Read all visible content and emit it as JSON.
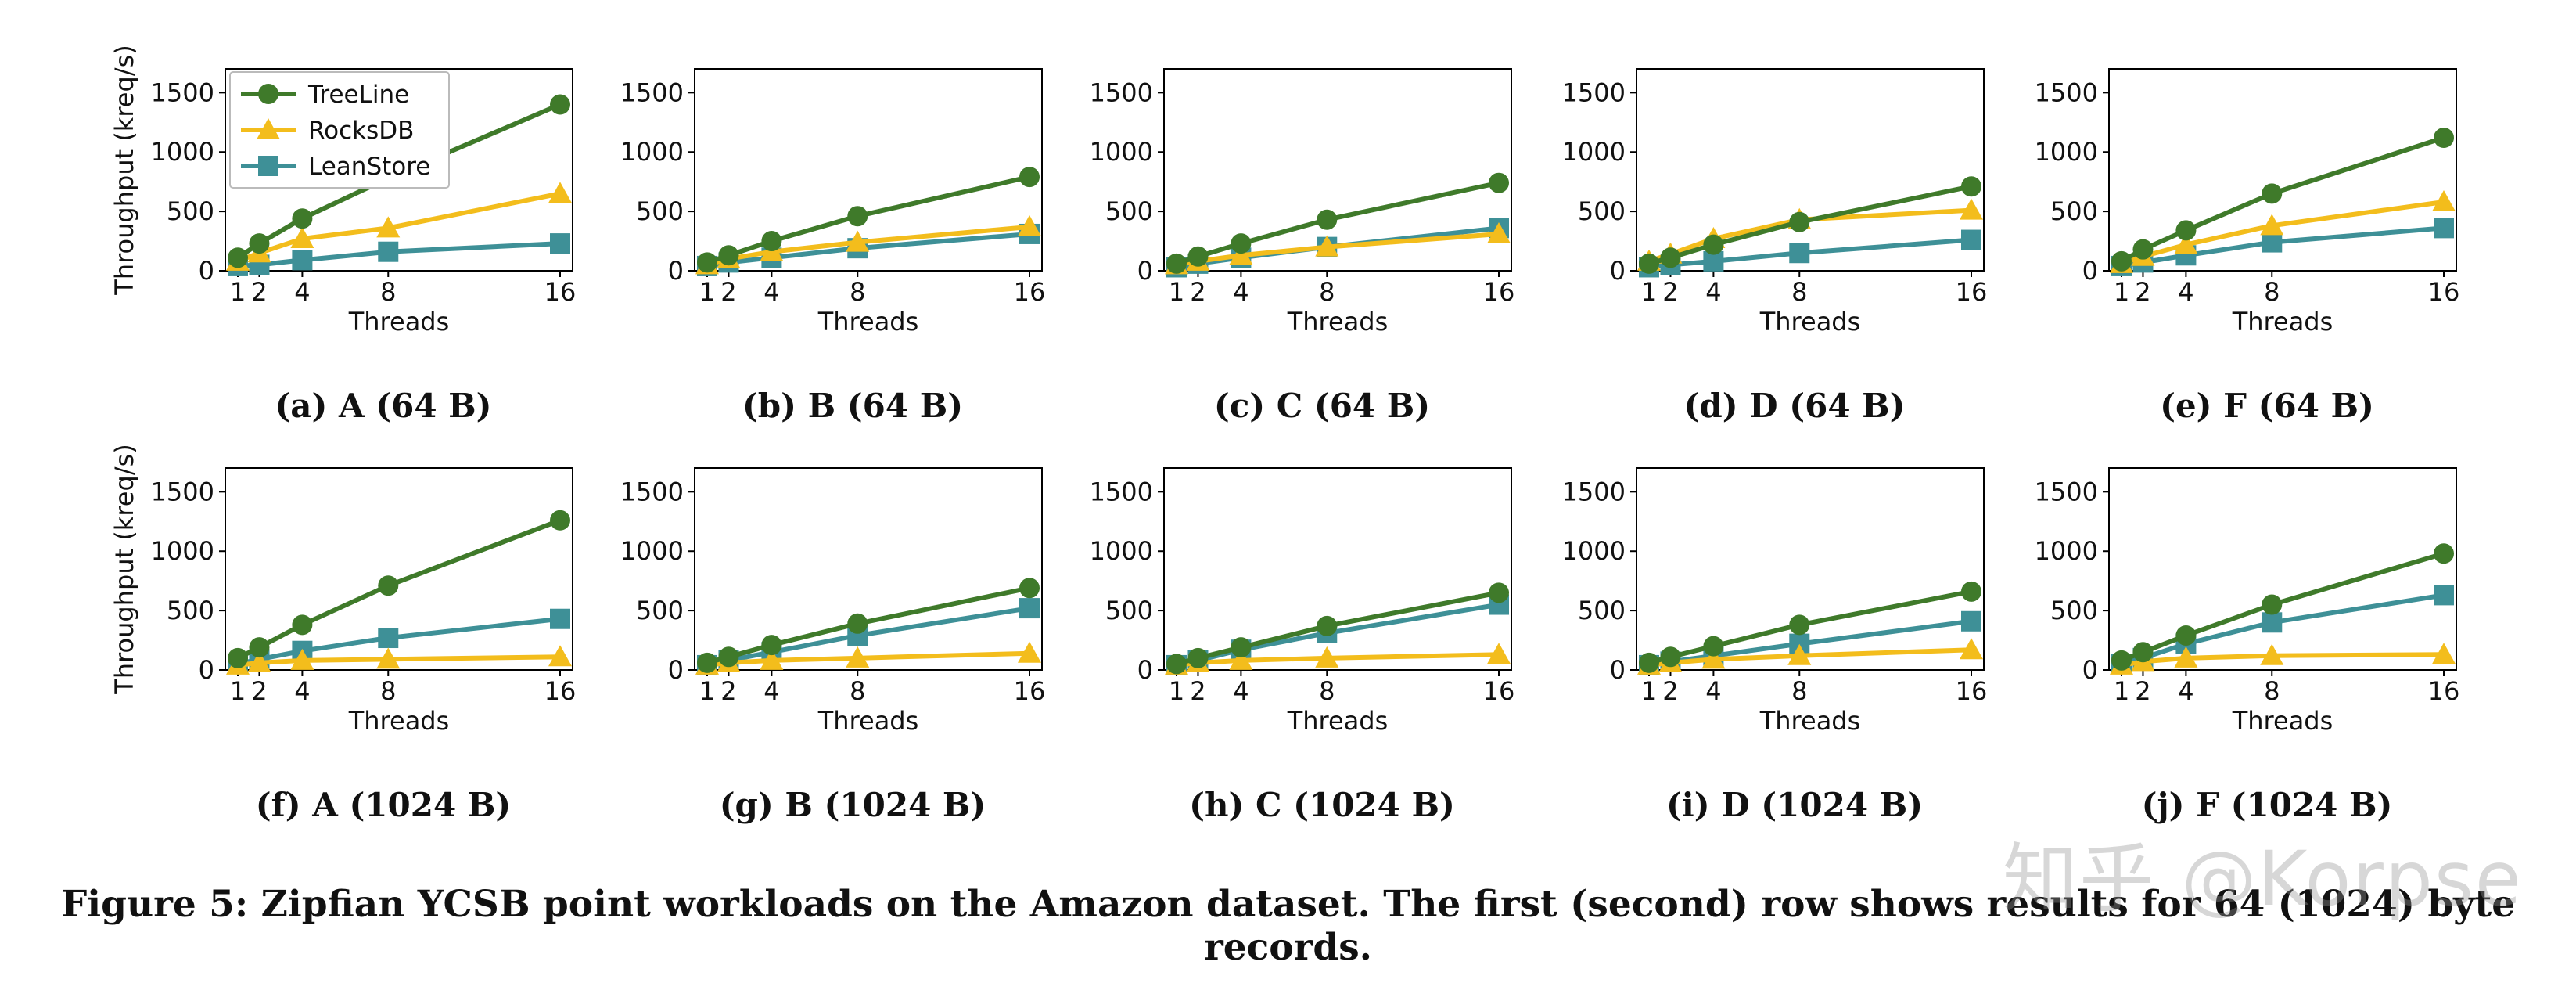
{
  "figure_caption": "Figure 5: Zipfian YCSB point workloads on the Amazon dataset. The first (second) row shows results for 64 (1024) byte records.",
  "watermark": "知乎 @Korpse",
  "colors": {
    "TreeLine": "#3f7a2a",
    "RocksDB": "#f3bd1c",
    "LeanStore": "#3e9097"
  },
  "chart_data": [
    {
      "type": "line",
      "caption": "(a) A (64 B)",
      "xlabel": "Threads",
      "ylabel": "Throughput (kreq/s)",
      "x": [
        1,
        2,
        4,
        8,
        16
      ],
      "xticks": [
        "1",
        "2",
        "4",
        "8",
        "16"
      ],
      "yticks": [
        "0",
        "500",
        "1000",
        "1500"
      ],
      "ylim": [
        0,
        1700
      ],
      "legend": true,
      "legend_position": "top-left",
      "series": [
        {
          "name": "TreeLine",
          "marker": "circle",
          "values": [
            110,
            230,
            440,
            780,
            1400
          ]
        },
        {
          "name": "RocksDB",
          "marker": "triangle",
          "values": [
            80,
            150,
            270,
            360,
            650
          ]
        },
        {
          "name": "LeanStore",
          "marker": "square",
          "values": [
            40,
            50,
            90,
            160,
            230
          ]
        }
      ]
    },
    {
      "type": "line",
      "caption": "(b) B (64 B)",
      "xlabel": "Threads",
      "ylabel": "",
      "x": [
        1,
        2,
        4,
        8,
        16
      ],
      "xticks": [
        "1",
        "2",
        "4",
        "8",
        "16"
      ],
      "yticks": [
        "0",
        "500",
        "1000",
        "1500"
      ],
      "ylim": [
        0,
        1700
      ],
      "legend": false,
      "series": [
        {
          "name": "TreeLine",
          "marker": "circle",
          "values": [
            70,
            130,
            250,
            460,
            790
          ]
        },
        {
          "name": "RocksDB",
          "marker": "triangle",
          "values": [
            50,
            100,
            160,
            240,
            370
          ]
        },
        {
          "name": "LeanStore",
          "marker": "square",
          "values": [
            40,
            70,
            110,
            190,
            310
          ]
        }
      ]
    },
    {
      "type": "line",
      "caption": "(c) C (64 B)",
      "xlabel": "Threads",
      "ylabel": "",
      "x": [
        1,
        2,
        4,
        8,
        16
      ],
      "xticks": [
        "1",
        "2",
        "4",
        "8",
        "16"
      ],
      "yticks": [
        "0",
        "500",
        "1000",
        "1500"
      ],
      "ylim": [
        0,
        1700
      ],
      "legend": false,
      "series": [
        {
          "name": "TreeLine",
          "marker": "circle",
          "values": [
            60,
            120,
            230,
            430,
            740
          ]
        },
        {
          "name": "RocksDB",
          "marker": "triangle",
          "values": [
            50,
            80,
            130,
            200,
            310
          ]
        },
        {
          "name": "LeanStore",
          "marker": "square",
          "values": [
            30,
            60,
            110,
            200,
            360
          ]
        }
      ]
    },
    {
      "type": "line",
      "caption": "(d) D (64 B)",
      "xlabel": "Threads",
      "ylabel": "",
      "x": [
        1,
        2,
        4,
        8,
        16
      ],
      "xticks": [
        "1",
        "2",
        "4",
        "8",
        "16"
      ],
      "yticks": [
        "0",
        "500",
        "1000",
        "1500"
      ],
      "ylim": [
        0,
        1700
      ],
      "legend": false,
      "series": [
        {
          "name": "TreeLine",
          "marker": "circle",
          "values": [
            60,
            110,
            220,
            410,
            710
          ]
        },
        {
          "name": "RocksDB",
          "marker": "triangle",
          "values": [
            80,
            140,
            270,
            430,
            510
          ]
        },
        {
          "name": "LeanStore",
          "marker": "square",
          "values": [
            30,
            50,
            80,
            150,
            260
          ]
        }
      ]
    },
    {
      "type": "line",
      "caption": "(e) F (64 B)",
      "xlabel": "Threads",
      "ylabel": "",
      "x": [
        1,
        2,
        4,
        8,
        16
      ],
      "xticks": [
        "1",
        "2",
        "4",
        "8",
        "16"
      ],
      "yticks": [
        "0",
        "500",
        "1000",
        "1500"
      ],
      "ylim": [
        0,
        1700
      ],
      "legend": false,
      "series": [
        {
          "name": "TreeLine",
          "marker": "circle",
          "values": [
            80,
            180,
            340,
            650,
            1120
          ]
        },
        {
          "name": "RocksDB",
          "marker": "triangle",
          "values": [
            60,
            120,
            220,
            380,
            580
          ]
        },
        {
          "name": "LeanStore",
          "marker": "square",
          "values": [
            40,
            70,
            130,
            240,
            360
          ]
        }
      ]
    },
    {
      "type": "line",
      "caption": "(f) A (1024 B)",
      "xlabel": "Threads",
      "ylabel": "Throughput (kreq/s)",
      "x": [
        1,
        2,
        4,
        8,
        16
      ],
      "xticks": [
        "1",
        "2",
        "4",
        "8",
        "16"
      ],
      "yticks": [
        "0",
        "500",
        "1000",
        "1500"
      ],
      "ylim": [
        0,
        1700
      ],
      "legend": false,
      "series": [
        {
          "name": "TreeLine",
          "marker": "circle",
          "values": [
            100,
            190,
            380,
            710,
            1260
          ]
        },
        {
          "name": "RocksDB",
          "marker": "triangle",
          "values": [
            40,
            60,
            80,
            90,
            110
          ]
        },
        {
          "name": "LeanStore",
          "marker": "square",
          "values": [
            50,
            90,
            160,
            270,
            430
          ]
        }
      ]
    },
    {
      "type": "line",
      "caption": "(g) B (1024 B)",
      "xlabel": "Threads",
      "ylabel": "",
      "x": [
        1,
        2,
        4,
        8,
        16
      ],
      "xticks": [
        "1",
        "2",
        "4",
        "8",
        "16"
      ],
      "yticks": [
        "0",
        "500",
        "1000",
        "1500"
      ],
      "ylim": [
        0,
        1700
      ],
      "legend": false,
      "series": [
        {
          "name": "TreeLine",
          "marker": "circle",
          "values": [
            60,
            110,
            210,
            390,
            690
          ]
        },
        {
          "name": "RocksDB",
          "marker": "triangle",
          "values": [
            40,
            60,
            80,
            100,
            140
          ]
        },
        {
          "name": "LeanStore",
          "marker": "square",
          "values": [
            40,
            80,
            150,
            290,
            520
          ]
        }
      ]
    },
    {
      "type": "line",
      "caption": "(h) C (1024 B)",
      "xlabel": "Threads",
      "ylabel": "",
      "x": [
        1,
        2,
        4,
        8,
        16
      ],
      "xticks": [
        "1",
        "2",
        "4",
        "8",
        "16"
      ],
      "yticks": [
        "0",
        "500",
        "1000",
        "1500"
      ],
      "ylim": [
        0,
        1700
      ],
      "legend": false,
      "series": [
        {
          "name": "TreeLine",
          "marker": "circle",
          "values": [
            50,
            100,
            190,
            370,
            650
          ]
        },
        {
          "name": "RocksDB",
          "marker": "triangle",
          "values": [
            40,
            60,
            80,
            100,
            130
          ]
        },
        {
          "name": "LeanStore",
          "marker": "square",
          "values": [
            40,
            80,
            170,
            310,
            550
          ]
        }
      ]
    },
    {
      "type": "line",
      "caption": "(i) D (1024 B)",
      "xlabel": "Threads",
      "ylabel": "",
      "x": [
        1,
        2,
        4,
        8,
        16
      ],
      "xticks": [
        "1",
        "2",
        "4",
        "8",
        "16"
      ],
      "yticks": [
        "0",
        "500",
        "1000",
        "1500"
      ],
      "ylim": [
        0,
        1700
      ],
      "legend": false,
      "series": [
        {
          "name": "TreeLine",
          "marker": "circle",
          "values": [
            60,
            110,
            200,
            380,
            660
          ]
        },
        {
          "name": "RocksDB",
          "marker": "triangle",
          "values": [
            40,
            60,
            90,
            120,
            170
          ]
        },
        {
          "name": "LeanStore",
          "marker": "square",
          "values": [
            40,
            70,
            120,
            220,
            410
          ]
        }
      ]
    },
    {
      "type": "line",
      "caption": "(j) F (1024 B)",
      "xlabel": "Threads",
      "ylabel": "",
      "x": [
        1,
        2,
        4,
        8,
        16
      ],
      "xticks": [
        "1",
        "2",
        "4",
        "8",
        "16"
      ],
      "yticks": [
        "0",
        "500",
        "1000",
        "1500"
      ],
      "ylim": [
        0,
        1700
      ],
      "legend": false,
      "series": [
        {
          "name": "TreeLine",
          "marker": "circle",
          "values": [
            80,
            150,
            290,
            550,
            980
          ]
        },
        {
          "name": "RocksDB",
          "marker": "triangle",
          "values": [
            40,
            70,
            100,
            120,
            130
          ]
        },
        {
          "name": "LeanStore",
          "marker": "square",
          "values": [
            50,
            100,
            220,
            400,
            630
          ]
        }
      ]
    }
  ]
}
